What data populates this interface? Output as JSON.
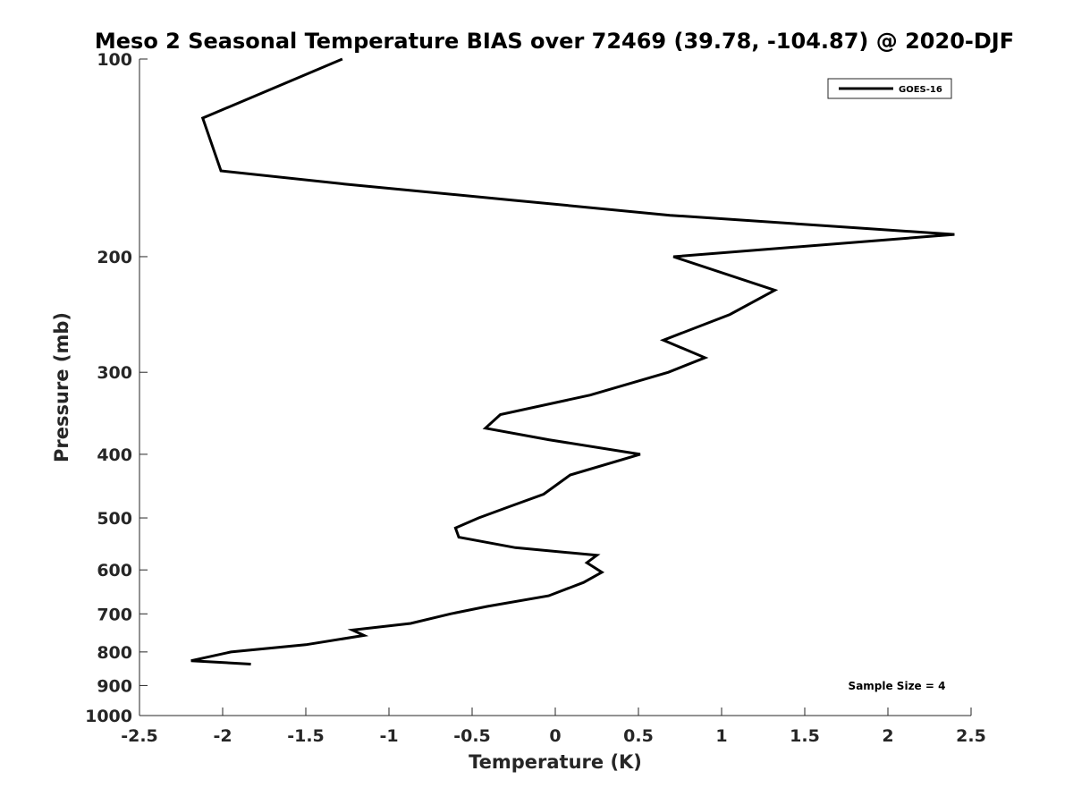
{
  "chart_data": {
    "type": "line",
    "title": "Meso 2 Seasonal Temperature BIAS over 72469 (39.78, -104.87) @ 2020-DJF",
    "xlabel": "Temperature (K)",
    "ylabel": "Pressure (mb)",
    "xlim": [
      -2.5,
      2.5
    ],
    "ylim": [
      100,
      1000
    ],
    "yscale": "log",
    "yreversed": true,
    "xticks": [
      "-2.5",
      "-2",
      "-1.5",
      "-1",
      "-0.5",
      "0",
      "0.5",
      "1",
      "1.5",
      "2",
      "2.5"
    ],
    "yticks": [
      "100",
      "200",
      "300",
      "400",
      "500",
      "600",
      "700",
      "800",
      "900",
      "1000"
    ],
    "grid": false,
    "legend_position": "top-right",
    "series": [
      {
        "name": "GOES-16",
        "color": "#000000",
        "x": [
          -1.28,
          -2.12,
          -2.01,
          -1.27,
          -0.26,
          0.69,
          2.4,
          0.71,
          1.32,
          1.05,
          0.65,
          0.9,
          0.68,
          0.21,
          -0.33,
          -0.42,
          -0.04,
          0.51,
          0.09,
          -0.07,
          -0.27,
          -0.46,
          -0.6,
          -0.58,
          -0.24,
          0.25,
          0.19,
          0.28,
          0.17,
          -0.04,
          -0.41,
          -0.63,
          -0.87,
          -1.22,
          -1.15,
          -1.5,
          -1.95,
          -2.19,
          -1.83
        ],
        "y": [
          100,
          123,
          148,
          155,
          164,
          173,
          185,
          200,
          225,
          245,
          268,
          285,
          300,
          325,
          348,
          365,
          380,
          400,
          430,
          460,
          480,
          500,
          518,
          535,
          555,
          570,
          585,
          605,
          627,
          657,
          682,
          700,
          724,
          741,
          755,
          780,
          800,
          825,
          835
        ]
      }
    ],
    "legend": [
      "GOES-16"
    ],
    "annotation": "Sample Size = 4"
  }
}
